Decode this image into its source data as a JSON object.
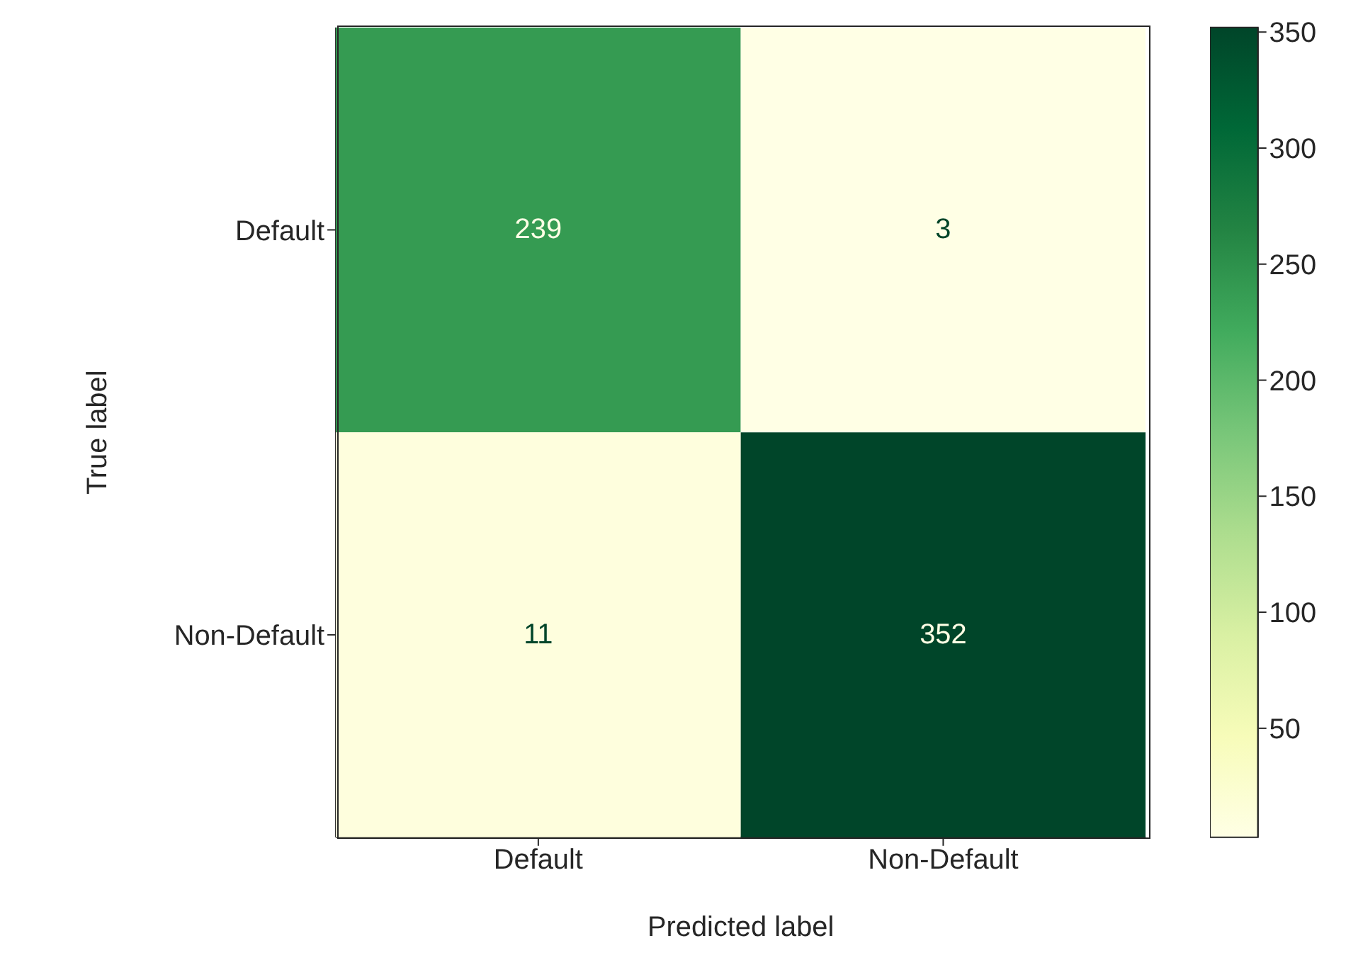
{
  "chart_data": {
    "type": "heatmap",
    "xlabel": "Predicted label",
    "ylabel": "True label",
    "categories": [
      "Default",
      "Non-Default"
    ],
    "y_categories": [
      "Default",
      "Non-Default"
    ],
    "cells": [
      [
        239,
        3
      ],
      [
        11,
        352
      ]
    ],
    "clim": [
      3,
      352
    ],
    "cticks": [
      50,
      100,
      150,
      200,
      250,
      300,
      350
    ],
    "data_labels": true
  }
}
